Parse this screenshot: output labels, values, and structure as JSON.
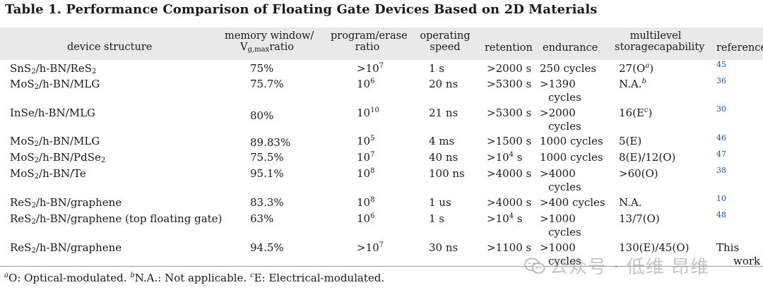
{
  "title": "Table 1. Performance Comparison of Floating Gate Devices Based on 2D Materials",
  "headers": {
    "device_structure": "device structure",
    "memory_window_line1": "memory window/",
    "memory_window_v": "V",
    "memory_window_sub": "g,max",
    "memory_window_tail": "ratio",
    "program_erase_line1": "program/erase",
    "program_erase_line2": "ratio",
    "operating_line1": "operating",
    "operating_line2": "speed",
    "retention": "retention",
    "endurance": "endurance",
    "multilevel_line1": "multilevel",
    "multilevel_line2": "storagecapability",
    "reference": "reference"
  },
  "rows": [
    {
      "device": "SnS",
      "d_sub": "2",
      "d_mid": "/h-BN/ReS",
      "d_sub2": "2",
      "d_tail": "",
      "window": "75%",
      "pe_base": ">10",
      "pe_exp": "7",
      "speed": "1 s",
      "ret_base": ">2000 s",
      "ret_exp": "",
      "ret_tail": "",
      "end1": "250 cycles",
      "end2": "",
      "ml_base": "27(O",
      "ml_sup": "a",
      "ml_tail": ")",
      "ref1": "45",
      "ref2": ""
    },
    {
      "device": "MoS",
      "d_sub": "2",
      "d_mid": "/h-BN/MLG",
      "d_sub2": "",
      "d_tail": "",
      "window": "75.7%",
      "pe_base": "10",
      "pe_exp": "6",
      "speed": "20 ns",
      "ret_base": ">5300 s",
      "ret_exp": "",
      "ret_tail": "",
      "end1": ">1390",
      "end2": "cycles",
      "ml_base": "N.A.",
      "ml_sup": "b",
      "ml_tail": "",
      "ref1": "36",
      "ref2": ""
    },
    {
      "device": "InSe/h-BN/MLG",
      "d_sub": "",
      "d_mid": "",
      "d_sub2": "",
      "d_tail": "",
      "window": "80%",
      "pe_base": "10",
      "pe_exp": "10",
      "speed": "21 ns",
      "ret_base": ">5300 s",
      "ret_exp": "",
      "ret_tail": "",
      "end1": ">2000",
      "end2": "cycles",
      "ml_base": "16(E",
      "ml_sup": "c",
      "ml_tail": ")",
      "ref1": "30",
      "ref2": ""
    },
    {
      "device": "MoS",
      "d_sub": "2",
      "d_mid": "/h-BN/MLG",
      "d_sub2": "",
      "d_tail": "",
      "window": "89.83%",
      "pe_base": "10",
      "pe_exp": "5",
      "speed": "4 ms",
      "ret_base": ">1500 s",
      "ret_exp": "",
      "ret_tail": "",
      "end1": "1000 cycles",
      "end2": "",
      "ml_base": "5(E)",
      "ml_sup": "",
      "ml_tail": "",
      "ref1": "46",
      "ref2": ""
    },
    {
      "device": "MoS",
      "d_sub": "2",
      "d_mid": "/h-BN/PdSe",
      "d_sub2": "2",
      "d_tail": "",
      "window": "75.5%",
      "pe_base": "10",
      "pe_exp": "7",
      "speed": "40 ns",
      "ret_base": ">10",
      "ret_exp": "4",
      "ret_tail": " s",
      "end1": "1000 cycles",
      "end2": "",
      "ml_base": "8(E)/12(O)",
      "ml_sup": "",
      "ml_tail": "",
      "ref1": "47",
      "ref2": ""
    },
    {
      "device": "MoS",
      "d_sub": "2",
      "d_mid": "/h-BN/Te",
      "d_sub2": "",
      "d_tail": "",
      "window": "95.1%",
      "pe_base": "10",
      "pe_exp": "8",
      "speed": "100 ns",
      "ret_base": ">4000 s",
      "ret_exp": "",
      "ret_tail": "",
      "end1": ">4000",
      "end2": "cycles",
      "ml_base": ">60(O)",
      "ml_sup": "",
      "ml_tail": "",
      "ref1": "38",
      "ref2": ""
    },
    {
      "device": "ReS",
      "d_sub": "2",
      "d_mid": "/h-BN/graphene",
      "d_sub2": "",
      "d_tail": "",
      "window": "83.3%",
      "pe_base": "10",
      "pe_exp": "8",
      "speed": "1 us",
      "ret_base": ">4000 s",
      "ret_exp": "",
      "ret_tail": "",
      "end1": ">400 cycles",
      "end2": "",
      "ml_base": "N.A.",
      "ml_sup": "",
      "ml_tail": "",
      "ref1": "10",
      "ref2": ""
    },
    {
      "device": "ReS",
      "d_sub": "2",
      "d_mid": "/h-BN/graphene (top floating gate)",
      "d_sub2": "",
      "d_tail": "",
      "window": "63%",
      "pe_base": "10",
      "pe_exp": "6",
      "speed": "1 s",
      "ret_base": ">10",
      "ret_exp": "4",
      "ret_tail": " s",
      "end1": ">1000",
      "end2": "cycles",
      "ml_base": "13/7(O)",
      "ml_sup": "",
      "ml_tail": "",
      "ref1": "48",
      "ref2": ""
    },
    {
      "device": "ReS",
      "d_sub": "2",
      "d_mid": "/h-BN/graphene",
      "d_sub2": "",
      "d_tail": "",
      "window": "94.5%",
      "pe_base": ">10",
      "pe_exp": "7",
      "speed": "30 ns",
      "ret_base": ">1100 s",
      "ret_exp": "",
      "ret_tail": "",
      "end1": ">1000",
      "end2": "cycles",
      "ml_base": "130(E)/45(O)",
      "ml_sup": "",
      "ml_tail": "",
      "ref1": "This",
      "ref2": "work"
    }
  ],
  "footnote": {
    "a_mark": "a",
    "a_text": "O: Optical-modulated. ",
    "b_mark": "b",
    "b_text": "N.A.: Not applicable. ",
    "c_mark": "c",
    "c_text": "E: Electrical-modulated."
  },
  "watermark": "公众号 · 低维 昂维",
  "watermark_icon": "wechat-icon"
}
